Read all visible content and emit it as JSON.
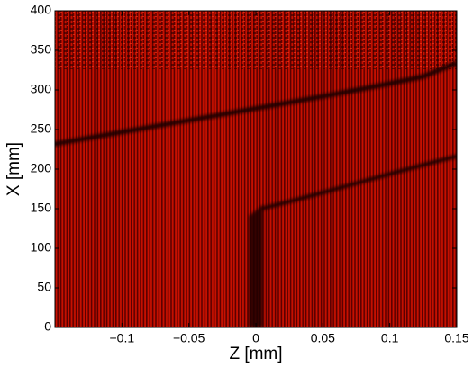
{
  "chart_data": {
    "type": "image",
    "xlabel": "Z [mm]",
    "ylabel": "X [mm]",
    "xlim": [
      -0.15,
      0.15
    ],
    "xticks": [
      {
        "value": -0.1,
        "label": "−0.1"
      },
      {
        "value": -0.05,
        "label": "−0.05"
      },
      0,
      0.05,
      0.1,
      0.15
    ],
    "ylim": [
      0,
      400
    ],
    "yticks": [
      0,
      50,
      100,
      150,
      200,
      250,
      300,
      350,
      400
    ]
  }
}
